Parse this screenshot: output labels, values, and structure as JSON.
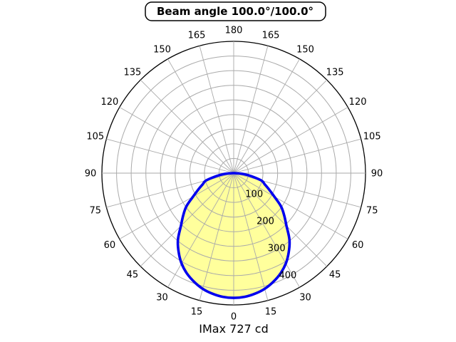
{
  "title": "Beam angle 100.0°/100.0°",
  "caption": "IMax 727 cd",
  "colors": {
    "curve_stroke": "#0000ee",
    "curve_fill": "#ffff9c",
    "grid": "#aaaaaa",
    "outer_circle": "#000000",
    "text": "#000000",
    "background": "#ffffff",
    "title_box_border": "#000000",
    "title_box_fill": "#ffffff"
  },
  "chart_data": {
    "type": "area",
    "projection": "polar",
    "title": "Beam angle 100.0°/100.0°",
    "caption": "IMax 727 cd",
    "beam_angle": "100.0°/100.0°",
    "imax_cd": 727,
    "angle_convention": "degrees from nadir, 0 = straight down, mirrored left/right",
    "symmetric_about_vertical": true,
    "r_axis": {
      "min": 0,
      "max": 450,
      "grid_step": 50,
      "tick_values": [
        100,
        200,
        300,
        400
      ],
      "tick_labels": [
        "100",
        "200",
        "300",
        "400"
      ],
      "tick_label_angle_deg": 22.5
    },
    "theta_ticks": {
      "step_deg": 15,
      "labels": [
        "0",
        "15",
        "30",
        "45",
        "60",
        "75",
        "90",
        "105",
        "120",
        "135",
        "150",
        "165",
        "180"
      ],
      "mirrored": true
    },
    "series": [
      {
        "name": "luminous-intensity-distribution",
        "points": [
          [
            0,
            426
          ],
          [
            5,
            424
          ],
          [
            10,
            418
          ],
          [
            15,
            409
          ],
          [
            20,
            395
          ],
          [
            25,
            378
          ],
          [
            30,
            356
          ],
          [
            35,
            328
          ],
          [
            40,
            296
          ],
          [
            45,
            255
          ],
          [
            50,
            225
          ],
          [
            55,
            197
          ],
          [
            60,
            160
          ],
          [
            65,
            134
          ],
          [
            70,
            113
          ],
          [
            75,
            98
          ],
          [
            80,
            62
          ],
          [
            85,
            32
          ],
          [
            90,
            4
          ]
        ]
      }
    ],
    "grid": true,
    "legend": false
  }
}
